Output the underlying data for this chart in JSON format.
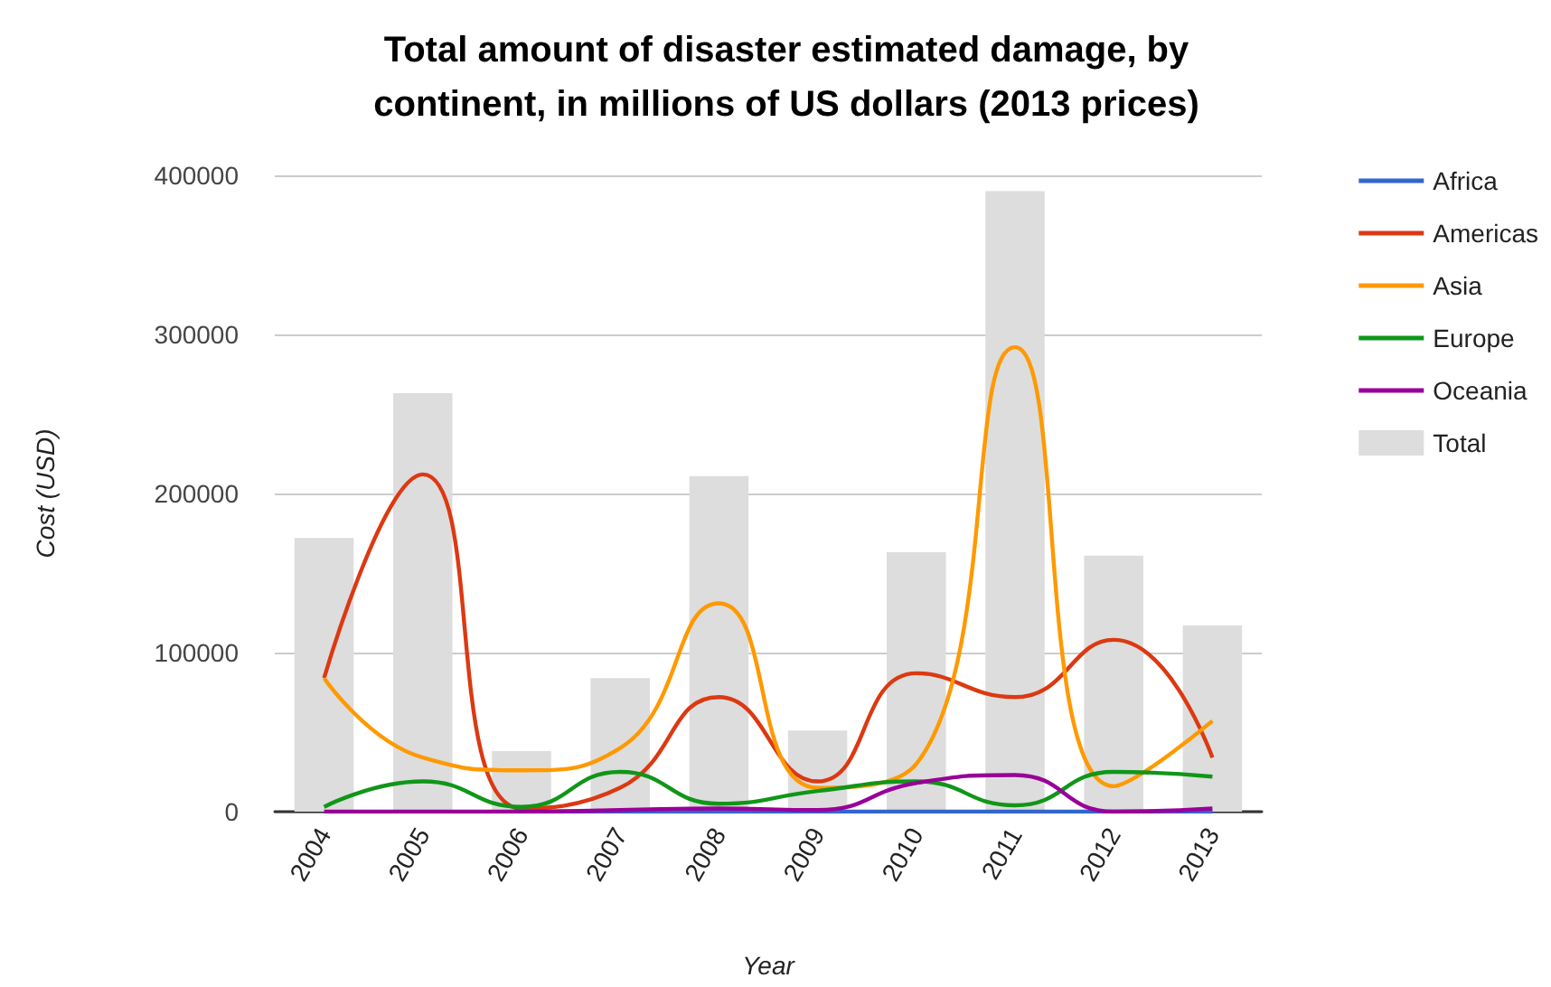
{
  "chart_data": {
    "type": "line",
    "title": "Total amount of disaster estimated damage, by\ncontinent, in millions of US dollars (2013 prices)",
    "xlabel": "Year",
    "ylabel": "Cost (USD)",
    "categories": [
      "2004",
      "2005",
      "2006",
      "2007",
      "2008",
      "2009",
      "2010",
      "2011",
      "2012",
      "2013"
    ],
    "series": [
      {
        "name": "Africa",
        "color": "#3366cc",
        "values": [
          null,
          null,
          0,
          0,
          0,
          0,
          0,
          0,
          0,
          0
        ]
      },
      {
        "name": "Americas",
        "color": "#dc3912",
        "values": [
          84000,
          212000,
          2000,
          15000,
          72000,
          19000,
          87000,
          72000,
          108000,
          34000
        ]
      },
      {
        "name": "Asia",
        "color": "#ff9900",
        "values": [
          84000,
          34000,
          26000,
          40000,
          131000,
          15000,
          30000,
          292000,
          16000,
          57000
        ]
      },
      {
        "name": "Europe",
        "color": "#109618",
        "values": [
          3000,
          19000,
          3000,
          25000,
          5000,
          13000,
          19000,
          4000,
          25000,
          22000
        ]
      },
      {
        "name": "Oceania",
        "color": "#990099",
        "values": [
          0,
          0,
          0,
          1000,
          2000,
          1000,
          18000,
          23000,
          0,
          2000
        ]
      },
      {
        "name": "Total",
        "type": "bar",
        "color": "#dddddd",
        "values": [
          172000,
          263000,
          38000,
          84000,
          211000,
          51000,
          163000,
          390000,
          161000,
          117000
        ]
      }
    ],
    "ylim": [
      0,
      400000
    ],
    "yticks": [
      0,
      100000,
      200000,
      300000,
      400000
    ],
    "grid": "y",
    "legend": "right",
    "marker": "none",
    "line_style": "solid"
  }
}
